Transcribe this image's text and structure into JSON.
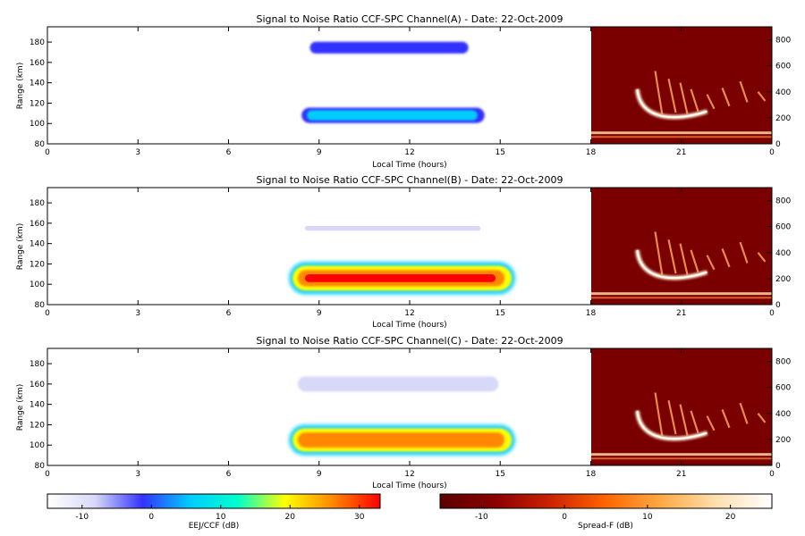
{
  "chart_data": [
    {
      "type": "heatmap",
      "title": "Signal to Noise Ratio CCF-SPC Channel(A) - Date: 22-Oct-2009",
      "xlabel": "Local Time (hours)",
      "ylabel": "Range (km)",
      "xlim": [
        0,
        24
      ],
      "ylim": [
        80,
        195
      ],
      "right_ylim": [
        0,
        900
      ],
      "x_ticks": [
        "0",
        "3",
        "6",
        "9",
        "12",
        "15",
        "18",
        "21",
        "0"
      ],
      "y_ticks": [
        80,
        100,
        120,
        140,
        160,
        180
      ],
      "right_y_ticks": [
        0,
        200,
        400,
        600,
        800
      ],
      "eej_regions": [
        {
          "layer": "150-km echoes",
          "t_start": 8.4,
          "t_end": 14.3,
          "r_low": 163,
          "r_high": 186,
          "peak_db": 0
        },
        {
          "layer": "E-region EEJ",
          "t_start": 8.3,
          "t_end": 14.6,
          "r_low": 98,
          "r_high": 118,
          "peak_db": 8
        }
      ],
      "spread_f_panel": {
        "t_start": 18,
        "t_end": 24
      }
    },
    {
      "type": "heatmap",
      "title": "Signal to Noise Ratio CCF-SPC Channel(B) - Date: 22-Oct-2009",
      "xlabel": "Local Time (hours)",
      "ylabel": "Range (km)",
      "xlim": [
        0,
        24
      ],
      "ylim": [
        80,
        195
      ],
      "right_ylim": [
        0,
        900
      ],
      "x_ticks": [
        "0",
        "3",
        "6",
        "9",
        "12",
        "15",
        "18",
        "21",
        "0"
      ],
      "y_ticks": [
        80,
        100,
        120,
        140,
        160,
        180
      ],
      "right_y_ticks": [
        0,
        200,
        400,
        600,
        800
      ],
      "eej_regions": [
        {
          "layer": "150-km echoes",
          "t_start": 8.0,
          "t_end": 15.0,
          "r_low": 145,
          "r_high": 165,
          "peak_db": -8
        },
        {
          "layer": "E-region EEJ",
          "t_start": 8.0,
          "t_end": 15.5,
          "r_low": 90,
          "r_high": 122,
          "peak_db": 30
        }
      ],
      "spread_f_panel": {
        "t_start": 18,
        "t_end": 24
      }
    },
    {
      "type": "heatmap",
      "title": "Signal to Noise Ratio CCF-SPC Channel(C) - Date: 22-Oct-2009",
      "xlabel": "Local Time (hours)",
      "ylabel": "Range (km)",
      "xlim": [
        0,
        24
      ],
      "ylim": [
        80,
        195
      ],
      "right_ylim": [
        0,
        900
      ],
      "x_ticks": [
        "0",
        "3",
        "6",
        "9",
        "12",
        "15",
        "18",
        "21",
        "0"
      ],
      "y_ticks": [
        80,
        100,
        120,
        140,
        160,
        180
      ],
      "right_y_ticks": [
        0,
        200,
        400,
        600,
        800
      ],
      "eej_regions": [
        {
          "layer": "150-km echoes",
          "t_start": 8.0,
          "t_end": 15.3,
          "r_low": 145,
          "r_high": 175,
          "peak_db": -5
        },
        {
          "layer": "E-region EEJ",
          "t_start": 8.0,
          "t_end": 15.5,
          "r_low": 90,
          "r_high": 120,
          "peak_db": 28
        }
      ],
      "spread_f_panel": {
        "t_start": 18,
        "t_end": 24
      }
    }
  ],
  "colorbars": [
    {
      "label": "EEJ/CCF (dB)",
      "ticks": [
        "-10",
        "0",
        "10",
        "20",
        "30"
      ],
      "range": [
        -15,
        33
      ],
      "stops": [
        "#ffffff",
        "#d8d8f8",
        "#3333ff",
        "#00ccff",
        "#00ffcc",
        "#ffff00",
        "#ff8800",
        "#ff0000"
      ]
    },
    {
      "label": "Spread-F (dB)",
      "ticks": [
        "-10",
        "0",
        "10",
        "20"
      ],
      "range": [
        -15,
        25
      ],
      "stops": [
        "#5a0000",
        "#8b0000",
        "#cc2200",
        "#ff6600",
        "#ffaa44",
        "#ffe0b0",
        "#ffffff"
      ]
    }
  ],
  "colors": {
    "spread_f_background": "#7a0000",
    "eej_strong": "#ff2200",
    "eej_weak": "#3344ff",
    "eej_mid": "#00e0c0"
  }
}
